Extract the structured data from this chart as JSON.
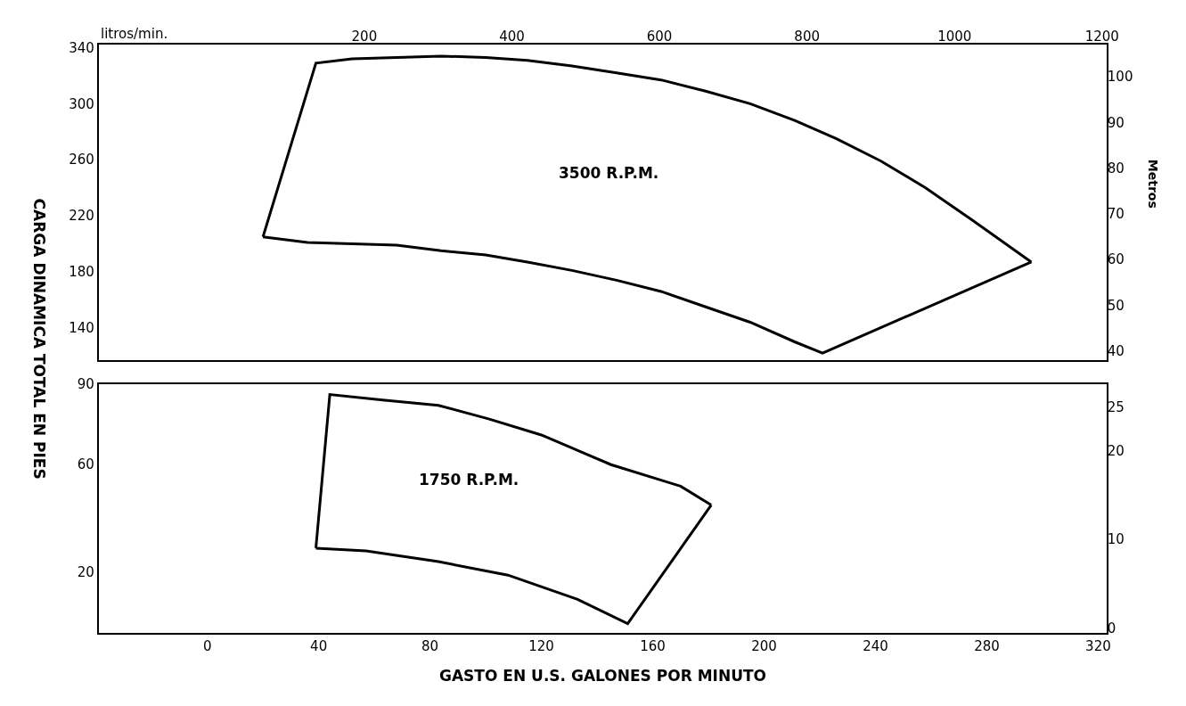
{
  "chart_data": [
    {
      "type": "line",
      "ylabel": "CARGA DINAMICA TOTAL EN PIES",
      "x2label": "litros/min.",
      "y2label": "Metros",
      "xlim": [
        -39,
        323
      ],
      "ylim": [
        117,
        342
      ],
      "yticks": [
        140,
        180,
        220,
        260,
        300,
        340
      ],
      "x2lim": [
        -160,
        1206
      ],
      "x2ticks": [
        200,
        400,
        600,
        800,
        1000,
        1200
      ],
      "y2lim": [
        38,
        107
      ],
      "y2ticks": [
        40,
        50,
        60,
        70,
        80,
        90,
        100
      ],
      "tick_labels": "y",
      "marker": "none",
      "line_style": "solid",
      "annotations": [
        "3500 R.P.M."
      ],
      "series": [
        {
          "color": "#000000",
          "x": [
            20,
            39,
            52,
            68,
            84,
            100,
            115,
            131,
            147,
            163,
            179,
            195,
            211,
            226,
            242,
            258,
            274,
            296
          ],
          "values": [
            205,
            329,
            332,
            333,
            334,
            333,
            331,
            327,
            322,
            317,
            309,
            300,
            288,
            275,
            259,
            240,
            218,
            187
          ]
        },
        {
          "color": "#000000",
          "x": [
            20,
            36,
            52,
            68,
            84,
            100,
            115,
            131,
            147,
            163,
            179,
            195,
            211,
            221,
            296
          ],
          "values": [
            205,
            201,
            200,
            199,
            195,
            192,
            187,
            181,
            174,
            166,
            155,
            144,
            130,
            122,
            187
          ]
        }
      ]
    },
    {
      "type": "line",
      "xlabel": "GASTO EN U.S. GALONES POR MINUTO",
      "xlim": [
        -39,
        323
      ],
      "xticks": [
        0,
        40,
        80,
        120,
        160,
        200,
        240,
        280,
        320
      ],
      "ylim": [
        -2.5,
        90
      ],
      "yticks": [
        20,
        60,
        90
      ],
      "y2lim": [
        -0.6,
        27.6
      ],
      "y2ticks": [
        0,
        10,
        20,
        25
      ],
      "marker": "none",
      "line_style": "solid",
      "annotations": [
        "1750 R.P.M."
      ],
      "series": [
        {
          "color": "#000000",
          "x": [
            39,
            44,
            63,
            83,
            101,
            120,
            145,
            170,
            181
          ],
          "values": [
            29,
            86,
            84,
            82,
            77,
            71,
            60,
            52,
            45
          ]
        },
        {
          "color": "#000000",
          "x": [
            39,
            57,
            83,
            108,
            133,
            151,
            181
          ],
          "values": [
            29,
            28,
            24,
            19,
            10,
            1,
            45
          ]
        }
      ]
    }
  ]
}
